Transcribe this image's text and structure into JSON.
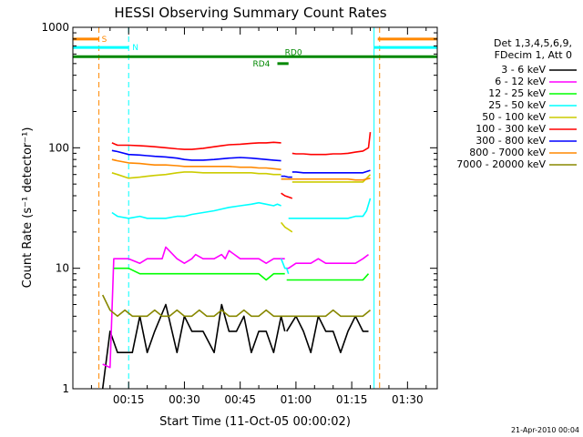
{
  "chart_data": {
    "type": "line",
    "title": "HESSI Observing Summary Count Rates",
    "xlabel": "Start Time (11-Oct-05 00:00:02)",
    "ylabel": "Count Rate (s⁻¹ detector⁻¹)",
    "y_scale": "log",
    "ylim": [
      1,
      1000
    ],
    "xlim_minutes": [
      0,
      98
    ],
    "x_ticks": [
      {
        "min": 15,
        "label": "00:15"
      },
      {
        "min": 30,
        "label": "00:30"
      },
      {
        "min": 45,
        "label": "00:45"
      },
      {
        "min": 60,
        "label": "01:00"
      },
      {
        "min": 75,
        "label": "01:15"
      },
      {
        "min": 90,
        "label": "01:30"
      }
    ],
    "y_ticks": [
      {
        "value": 1,
        "label": "1"
      },
      {
        "value": 10,
        "label": "10"
      },
      {
        "value": 100,
        "label": "100"
      },
      {
        "value": 1000,
        "label": "1000"
      }
    ],
    "grid": false,
    "legend": {
      "placement": "right",
      "header": [
        "Det 1,3,4,5,6,9,",
        "FDecim 1, Att 0"
      ]
    },
    "series": [
      {
        "name": "3 - 6 keV",
        "color": "#000000",
        "segments": [
          {
            "x": [
              8,
              10,
              12,
              16,
              18,
              20,
              22,
              25,
              28,
              30,
              32,
              35,
              38,
              40,
              42,
              44,
              46,
              48,
              50,
              52,
              54,
              56,
              57
            ],
            "y": [
              1,
              3,
              2,
              2,
              4,
              2,
              3,
              5,
              2,
              4,
              3,
              3,
              2,
              5,
              3,
              3,
              4,
              2,
              3,
              3,
              2,
              4,
              3
            ]
          },
          {
            "x": [
              57.5,
              60,
              62,
              64,
              66,
              68,
              70,
              72,
              74,
              76,
              78,
              79.5
            ],
            "y": [
              3,
              4,
              3,
              2,
              4,
              3,
              3,
              2,
              3,
              4,
              3,
              3
            ]
          }
        ]
      },
      {
        "name": "6 - 12 keV",
        "color": "#ff00ff",
        "segments": [
          {
            "x": [
              8,
              10,
              11,
              12,
              15,
              18,
              20,
              22,
              24,
              25,
              28,
              30,
              32,
              33,
              35,
              38,
              40,
              41,
              42,
              45,
              48,
              50,
              52,
              54,
              56,
              57
            ],
            "y": [
              1.6,
              1.5,
              12,
              12,
              12,
              11,
              12,
              12,
              12,
              15,
              12,
              11,
              12,
              13,
              12,
              12,
              13,
              12,
              14,
              12,
              12,
              12,
              11,
              12,
              12,
              12
            ]
          },
          {
            "x": [
              57,
              58,
              60,
              62,
              64,
              66,
              68,
              70,
              72,
              74,
              76,
              78,
              79.5
            ],
            "y": [
              10,
              10,
              11,
              11,
              11,
              12,
              11,
              11,
              11,
              11,
              11,
              12,
              13
            ]
          }
        ]
      },
      {
        "name": "12 - 25 keV",
        "color": "#00ff00",
        "segments": [
          {
            "x": [
              11,
              12,
              15,
              18,
              20,
              22,
              25,
              28,
              30,
              32,
              35,
              38,
              40,
              42,
              45,
              48,
              50,
              52,
              54,
              56,
              57
            ],
            "y": [
              10,
              10,
              10,
              9,
              9,
              9,
              9,
              9,
              9,
              9,
              9,
              9,
              9,
              9,
              9,
              9,
              9,
              8,
              9,
              9,
              9
            ]
          },
          {
            "x": [
              57.5,
              58,
              60,
              62,
              64,
              66,
              68,
              70,
              72,
              74,
              76,
              78,
              79.5
            ],
            "y": [
              8,
              8,
              8,
              8,
              8,
              8,
              8,
              8,
              8,
              8,
              8,
              8,
              9
            ]
          }
        ]
      },
      {
        "name": "25 - 50 keV",
        "color": "#00ffff",
        "segments": [
          {
            "x": [
              10.5,
              12,
              15,
              18,
              20,
              22,
              25,
              28,
              30,
              32,
              35,
              38,
              40,
              42,
              45,
              48,
              50,
              52,
              54,
              55,
              56
            ],
            "y": [
              29,
              27,
              26,
              27,
              26,
              26,
              26,
              27,
              27,
              28,
              29,
              30,
              31,
              32,
              33,
              34,
              35,
              34,
              33,
              34,
              33
            ]
          },
          {
            "x": [
              56,
              56.5,
              57,
              57.5,
              58
            ],
            "y": [
              12,
              11,
              10,
              10,
              9
            ]
          },
          {
            "x": [
              58,
              60,
              62,
              64,
              66,
              68,
              70,
              72,
              74,
              76,
              78,
              79,
              80
            ],
            "y": [
              26,
              26,
              26,
              26,
              26,
              26,
              26,
              26,
              26,
              27,
              27,
              30,
              38
            ]
          }
        ]
      },
      {
        "name": "50 - 100 keV",
        "color": "#cccc00",
        "segments": [
          {
            "x": [
              10.5,
              12,
              15,
              18,
              20,
              22,
              25,
              28,
              30,
              32,
              35,
              38,
              40,
              42,
              45,
              48,
              50,
              52,
              54,
              56
            ],
            "y": [
              62,
              60,
              56,
              57,
              58,
              59,
              60,
              62,
              63,
              63,
              62,
              62,
              62,
              62,
              62,
              62,
              61,
              61,
              60,
              60
            ]
          },
          {
            "x": [
              56,
              57,
              58,
              59
            ],
            "y": [
              24,
              22,
              21,
              20
            ]
          },
          {
            "x": [
              59,
              60,
              62,
              64,
              66,
              68,
              70,
              72,
              74,
              76,
              78,
              80
            ],
            "y": [
              52,
              52,
              52,
              52,
              52,
              52,
              52,
              52,
              52,
              52,
              52,
              60
            ]
          }
        ]
      },
      {
        "name": "100 - 300 keV",
        "color": "#ff0000",
        "segments": [
          {
            "x": [
              10.5,
              12,
              15,
              18,
              20,
              22,
              25,
              28,
              30,
              32,
              35,
              38,
              40,
              42,
              45,
              48,
              50,
              52,
              54,
              56
            ],
            "y": [
              110,
              105,
              105,
              104,
              103,
              102,
              100,
              98,
              97,
              97,
              99,
              102,
              104,
              106,
              107,
              109,
              110,
              110,
              111,
              110
            ]
          },
          {
            "x": [
              56,
              57,
              58,
              59
            ],
            "y": [
              42,
              40,
              39,
              38
            ]
          },
          {
            "x": [
              59,
              60,
              62,
              64,
              66,
              68,
              70,
              72,
              74,
              76,
              78,
              79.5,
              80
            ],
            "y": [
              90,
              89,
              89,
              88,
              88,
              88,
              89,
              89,
              90,
              92,
              94,
              100,
              135
            ]
          }
        ]
      },
      {
        "name": "300 - 800 keV",
        "color": "#0000ff",
        "segments": [
          {
            "x": [
              10.5,
              12,
              15,
              18,
              20,
              22,
              25,
              28,
              30,
              32,
              35,
              38,
              40,
              42,
              45,
              48,
              50,
              52,
              54,
              56
            ],
            "y": [
              95,
              93,
              88,
              87,
              86,
              85,
              84,
              82,
              80,
              79,
              79,
              80,
              81,
              82,
              83,
              82,
              81,
              80,
              79,
              78
            ]
          },
          {
            "x": [
              56,
              57,
              58,
              59
            ],
            "y": [
              58,
              58,
              57,
              57
            ]
          },
          {
            "x": [
              59,
              60,
              62,
              64,
              66,
              68,
              70,
              72,
              74,
              76,
              78,
              80
            ],
            "y": [
              63,
              63,
              62,
              62,
              62,
              62,
              62,
              62,
              62,
              62,
              62,
              65
            ]
          }
        ]
      },
      {
        "name": "800 - 7000 keV",
        "color": "#ff8800",
        "segments": [
          {
            "x": [
              10.5,
              12,
              15,
              18,
              20,
              22,
              25,
              28,
              30,
              32,
              35,
              38,
              40,
              42,
              45,
              48,
              50,
              52,
              54,
              56
            ],
            "y": [
              80,
              78,
              75,
              74,
              73,
              72,
              72,
              71,
              70,
              70,
              70,
              70,
              70,
              70,
              69,
              69,
              68,
              68,
              67,
              66
            ]
          },
          {
            "x": [
              56,
              58,
              60,
              62,
              64,
              66,
              68,
              70,
              72,
              74,
              76,
              78,
              80
            ],
            "y": [
              55,
              55,
              55,
              55,
              55,
              55,
              55,
              55,
              55,
              55,
              54,
              54,
              56
            ]
          }
        ]
      },
      {
        "name": "7000 - 20000 keV",
        "color": "#888800",
        "segments": [
          {
            "x": [
              8,
              10,
              12,
              14,
              16,
              18,
              20,
              22,
              24,
              26,
              28,
              30,
              32,
              34,
              36,
              38,
              40,
              42,
              44,
              46,
              48,
              50,
              52,
              54,
              56
            ],
            "y": [
              6,
              4.5,
              4,
              4.5,
              4,
              4,
              4,
              4.5,
              4,
              4,
              4.5,
              4,
              4,
              4.5,
              4,
              4,
              4.5,
              4,
              4,
              4.5,
              4,
              4,
              4.5,
              4,
              4
            ]
          },
          {
            "x": [
              56,
              58,
              60,
              62,
              64,
              66,
              68,
              70,
              72,
              74,
              76,
              78,
              80
            ],
            "y": [
              4,
              4,
              4,
              4,
              4,
              4,
              4,
              4.5,
              4,
              4,
              4,
              4,
              4.5
            ]
          }
        ]
      }
    ],
    "annotations": {
      "s_bar": {
        "label": "S",
        "x_start": 0,
        "x_end": 7,
        "x_right_start": 82,
        "x_right_end": 98,
        "y": 800,
        "color": "#ff8800"
      },
      "n_bar": {
        "label": "N",
        "x_start": 0,
        "x_end": 15,
        "x_right_start": 81,
        "x_right_end": 98,
        "y": 680,
        "color": "#00ffff"
      },
      "rd0_bar": {
        "label": "RD0",
        "x_start": 0,
        "x_end": 98,
        "y": 570,
        "color": "#008800"
      },
      "rd4_bar": {
        "label": "RD4",
        "x_start": 55,
        "x_end": 58,
        "y": 500,
        "color": "#008800"
      },
      "vlines_dashed": [
        {
          "x": 7,
          "color": "#ff8800"
        },
        {
          "x": 15,
          "color": "#00ffff"
        },
        {
          "x": 82.5,
          "color": "#ff8800"
        },
        {
          "x": 98,
          "color": "#00ffff"
        }
      ],
      "vlines_solid": [
        {
          "x": 81,
          "color": "#00ffff"
        }
      ]
    },
    "timestamp": "21-Apr-2010 00:04"
  }
}
